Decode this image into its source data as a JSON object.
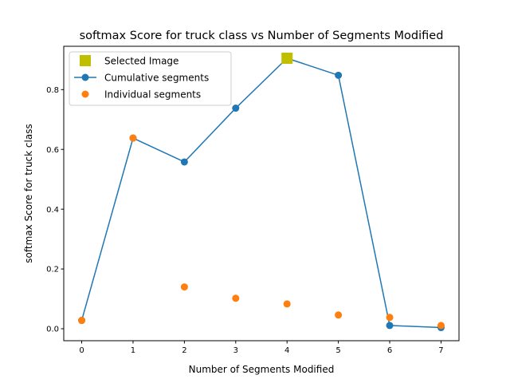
{
  "chart_data": {
    "type": "line",
    "title": "softmax Score for truck class vs Number of Segments Modified",
    "xlabel": "Number of Segments Modified",
    "ylabel": "softmax Score for truck class",
    "xlim": [
      -0.35,
      7.35
    ],
    "ylim": [
      -0.04,
      0.945
    ],
    "xticks": [
      0,
      1,
      2,
      3,
      4,
      5,
      6,
      7
    ],
    "yticks": [
      0.0,
      0.2,
      0.4,
      0.6,
      0.8
    ],
    "ytick_labels": [
      "0.0",
      "0.2",
      "0.4",
      "0.6",
      "0.8"
    ],
    "grid": false,
    "legend_position": "upper-left",
    "series": [
      {
        "name": "Cumulative segments",
        "style": "line-marker",
        "color": "#1f77b4",
        "x": [
          0,
          1,
          2,
          3,
          4,
          5,
          6,
          7
        ],
        "y": [
          0.028,
          0.638,
          0.558,
          0.738,
          0.905,
          0.848,
          0.011,
          0.004
        ]
      },
      {
        "name": "Individual segments",
        "style": "marker",
        "color": "#ff7f0e",
        "x": [
          0,
          1,
          2,
          3,
          4,
          5,
          6,
          7
        ],
        "y": [
          0.028,
          0.638,
          0.14,
          0.102,
          0.083,
          0.046,
          0.038,
          0.011
        ]
      },
      {
        "name": "Selected Image",
        "style": "square",
        "color": "#bfbf00",
        "x": [
          4
        ],
        "y": [
          0.905
        ]
      }
    ],
    "legend_order": [
      "Selected Image",
      "Cumulative segments",
      "Individual segments"
    ]
  }
}
